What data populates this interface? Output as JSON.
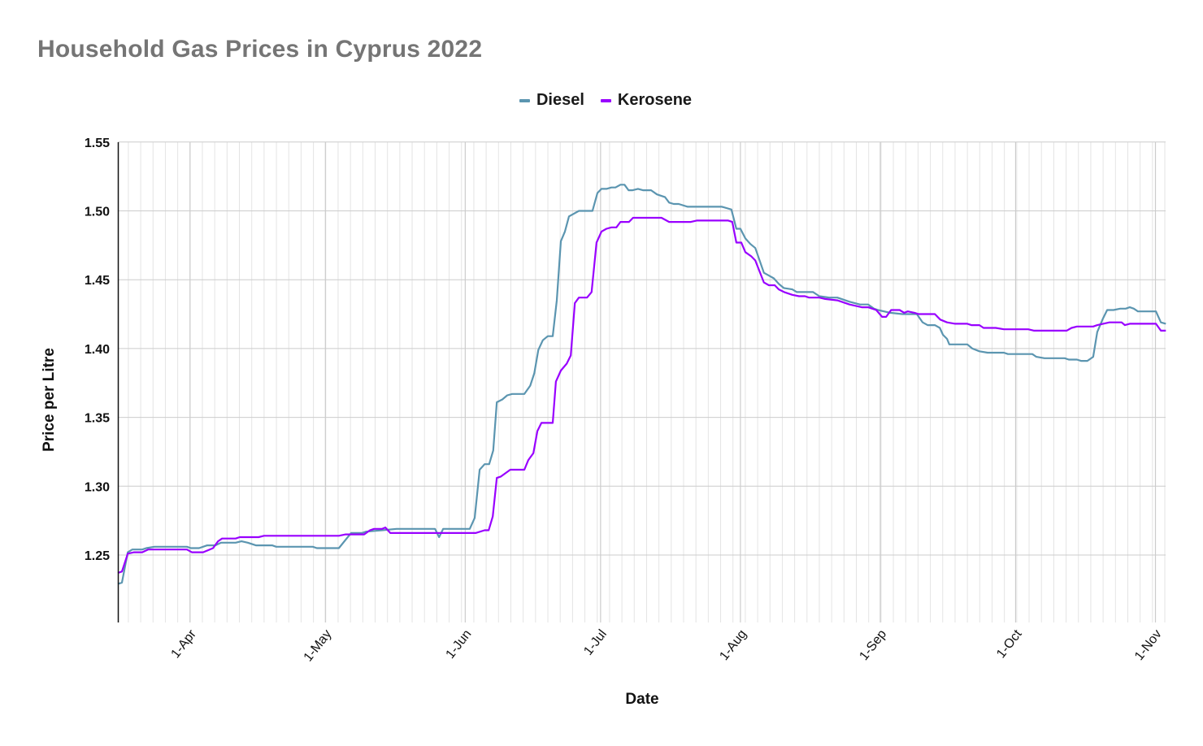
{
  "header": {
    "title": "Household Gas Prices in Cyprus 2022"
  },
  "legend": [
    {
      "label": "Diesel",
      "color": "#5b95b0"
    },
    {
      "label": "Kerosene",
      "color": "#9900ff"
    }
  ],
  "axes": {
    "x_title": "Date",
    "y_title": "Price per Litre"
  },
  "chart_data": {
    "type": "line",
    "title": "Household Gas Prices in Cyprus 2022",
    "xlabel": "Date",
    "ylabel": "Price per Litre",
    "ylim": [
      1.2,
      1.55
    ],
    "y_ticks": [
      "1.25",
      "1.30",
      "1.35",
      "1.40",
      "1.45",
      "1.50",
      "1.55"
    ],
    "x_unit": "days since first data point (approx. mid-March 2022)",
    "x_range": [
      0,
      232
    ],
    "x_ticks": [
      {
        "label": "1-Apr",
        "day": 16
      },
      {
        "label": "1-May",
        "day": 46
      },
      {
        "label": "1-Jun",
        "day": 77
      },
      {
        "label": "1-Jul",
        "day": 107
      },
      {
        "label": "1-Aug",
        "day": 138
      },
      {
        "label": "1-Sep",
        "day": 169
      },
      {
        "label": "1-Oct",
        "day": 199
      },
      {
        "label": "1-Nov",
        "day": 230
      }
    ],
    "grid": true,
    "legend_position": "top",
    "series": [
      {
        "name": "Diesel",
        "color": "#5b95b0",
        "points": [
          [
            0,
            1.229
          ],
          [
            0.9,
            1.23
          ],
          [
            2.2,
            1.252
          ],
          [
            3.2,
            1.254
          ],
          [
            5.4,
            1.254
          ],
          [
            6.3,
            1.255
          ],
          [
            8.1,
            1.256
          ],
          [
            15.3,
            1.256
          ],
          [
            16.2,
            1.255
          ],
          [
            18.0,
            1.255
          ],
          [
            19.8,
            1.257
          ],
          [
            21.6,
            1.257
          ],
          [
            22.9,
            1.259
          ],
          [
            26.1,
            1.259
          ],
          [
            27.4,
            1.26
          ],
          [
            28.8,
            1.259
          ],
          [
            30.6,
            1.257
          ],
          [
            34.2,
            1.257
          ],
          [
            35.1,
            1.256
          ],
          [
            43.2,
            1.256
          ],
          [
            44.1,
            1.255
          ],
          [
            49.0,
            1.255
          ],
          [
            51.7,
            1.266
          ],
          [
            54.1,
            1.266
          ],
          [
            55.0,
            1.267
          ],
          [
            58.6,
            1.268
          ],
          [
            61.8,
            1.269
          ],
          [
            70.3,
            1.269
          ],
          [
            71.2,
            1.263
          ],
          [
            72.1,
            1.269
          ],
          [
            78.0,
            1.269
          ],
          [
            79.1,
            1.277
          ],
          [
            80.2,
            1.312
          ],
          [
            81.3,
            1.316
          ],
          [
            82.3,
            1.316
          ],
          [
            83.2,
            1.326
          ],
          [
            84.0,
            1.361
          ],
          [
            85.2,
            1.363
          ],
          [
            86.3,
            1.366
          ],
          [
            87.4,
            1.367
          ],
          [
            90.1,
            1.367
          ],
          [
            91.4,
            1.373
          ],
          [
            92.3,
            1.382
          ],
          [
            93.2,
            1.399
          ],
          [
            94.2,
            1.406
          ],
          [
            95.3,
            1.409
          ],
          [
            96.4,
            1.409
          ],
          [
            97.3,
            1.435
          ],
          [
            98.2,
            1.478
          ],
          [
            99.1,
            1.485
          ],
          [
            100.0,
            1.496
          ],
          [
            102.2,
            1.5
          ],
          [
            105.2,
            1.5
          ],
          [
            106.3,
            1.513
          ],
          [
            107.2,
            1.516
          ],
          [
            108.3,
            1.516
          ],
          [
            109.4,
            1.517
          ],
          [
            110.3,
            1.517
          ],
          [
            111.4,
            1.519
          ],
          [
            112.3,
            1.519
          ],
          [
            113.2,
            1.515
          ],
          [
            114.1,
            1.515
          ],
          [
            115.3,
            1.516
          ],
          [
            116.4,
            1.515
          ],
          [
            118.2,
            1.515
          ],
          [
            119.5,
            1.512
          ],
          [
            121.3,
            1.51
          ],
          [
            122.2,
            1.506
          ],
          [
            123.2,
            1.505
          ],
          [
            124.3,
            1.505
          ],
          [
            126.3,
            1.503
          ],
          [
            133.9,
            1.503
          ],
          [
            136.0,
            1.501
          ],
          [
            137.1,
            1.487
          ],
          [
            138.0,
            1.487
          ],
          [
            139.1,
            1.48
          ],
          [
            140.2,
            1.476
          ],
          [
            141.3,
            1.473
          ],
          [
            143.2,
            1.455
          ],
          [
            144.3,
            1.453
          ],
          [
            145.4,
            1.451
          ],
          [
            146.5,
            1.447
          ],
          [
            147.6,
            1.444
          ],
          [
            149.5,
            1.443
          ],
          [
            150.5,
            1.441
          ],
          [
            154.1,
            1.441
          ],
          [
            155.5,
            1.438
          ],
          [
            157.7,
            1.437
          ],
          [
            159.5,
            1.437
          ],
          [
            162.2,
            1.434
          ],
          [
            164.5,
            1.432
          ],
          [
            166.3,
            1.432
          ],
          [
            167.6,
            1.429
          ],
          [
            168.5,
            1.428
          ],
          [
            171.2,
            1.426
          ],
          [
            173.9,
            1.425
          ],
          [
            177.1,
            1.425
          ],
          [
            178.4,
            1.419
          ],
          [
            179.5,
            1.417
          ],
          [
            181.1,
            1.417
          ],
          [
            182.2,
            1.415
          ],
          [
            182.9,
            1.41
          ],
          [
            183.8,
            1.407
          ],
          [
            184.3,
            1.403
          ],
          [
            188.3,
            1.403
          ],
          [
            189.4,
            1.4
          ],
          [
            191.0,
            1.398
          ],
          [
            192.8,
            1.397
          ],
          [
            196.4,
            1.397
          ],
          [
            197.3,
            1.396
          ],
          [
            199.1,
            1.396
          ],
          [
            202.7,
            1.396
          ],
          [
            203.6,
            1.394
          ],
          [
            205.4,
            1.393
          ],
          [
            209.9,
            1.393
          ],
          [
            210.8,
            1.392
          ],
          [
            212.6,
            1.392
          ],
          [
            213.5,
            1.391
          ],
          [
            214.9,
            1.391
          ],
          [
            216.2,
            1.394
          ],
          [
            217.1,
            1.412
          ],
          [
            218.4,
            1.422
          ],
          [
            219.3,
            1.428
          ],
          [
            220.7,
            1.428
          ],
          [
            222.2,
            1.429
          ],
          [
            223.4,
            1.429
          ],
          [
            224.3,
            1.43
          ],
          [
            225.2,
            1.429
          ],
          [
            226.1,
            1.427
          ],
          [
            230.1,
            1.427
          ],
          [
            231.2,
            1.419
          ],
          [
            232.3,
            1.418
          ]
        ]
      },
      {
        "name": "Kerosene",
        "color": "#9900ff",
        "points": [
          [
            0,
            1.237
          ],
          [
            0.9,
            1.238
          ],
          [
            2.2,
            1.251
          ],
          [
            3.6,
            1.252
          ],
          [
            5.4,
            1.252
          ],
          [
            6.7,
            1.254
          ],
          [
            15.3,
            1.254
          ],
          [
            16.4,
            1.252
          ],
          [
            18.9,
            1.252
          ],
          [
            21.1,
            1.255
          ],
          [
            22.2,
            1.26
          ],
          [
            23.1,
            1.262
          ],
          [
            26.1,
            1.262
          ],
          [
            27.0,
            1.263
          ],
          [
            31.2,
            1.263
          ],
          [
            32.4,
            1.264
          ],
          [
            49.0,
            1.264
          ],
          [
            50.5,
            1.265
          ],
          [
            54.6,
            1.265
          ],
          [
            55.9,
            1.268
          ],
          [
            56.8,
            1.269
          ],
          [
            58.6,
            1.269
          ],
          [
            59.3,
            1.27
          ],
          [
            60.4,
            1.266
          ],
          [
            79.3,
            1.266
          ],
          [
            81.3,
            1.268
          ],
          [
            82.2,
            1.268
          ],
          [
            83.1,
            1.278
          ],
          [
            84.0,
            1.306
          ],
          [
            84.9,
            1.307
          ],
          [
            87.0,
            1.312
          ],
          [
            90.1,
            1.312
          ],
          [
            91.0,
            1.319
          ],
          [
            92.1,
            1.324
          ],
          [
            93.0,
            1.34
          ],
          [
            93.9,
            1.346
          ],
          [
            96.4,
            1.346
          ],
          [
            97.1,
            1.376
          ],
          [
            98.2,
            1.384
          ],
          [
            99.5,
            1.389
          ],
          [
            100.4,
            1.395
          ],
          [
            101.3,
            1.433
          ],
          [
            102.2,
            1.437
          ],
          [
            104.0,
            1.437
          ],
          [
            105.0,
            1.441
          ],
          [
            106.1,
            1.477
          ],
          [
            107.2,
            1.485
          ],
          [
            108.3,
            1.487
          ],
          [
            109.4,
            1.488
          ],
          [
            110.5,
            1.488
          ],
          [
            111.4,
            1.492
          ],
          [
            112.3,
            1.492
          ],
          [
            113.3,
            1.492
          ],
          [
            114.2,
            1.495
          ],
          [
            117.3,
            1.495
          ],
          [
            118.2,
            1.495
          ],
          [
            120.5,
            1.495
          ],
          [
            122.2,
            1.492
          ],
          [
            127.0,
            1.492
          ],
          [
            128.3,
            1.493
          ],
          [
            135.3,
            1.493
          ],
          [
            136.2,
            1.492
          ],
          [
            137.1,
            1.477
          ],
          [
            138.2,
            1.477
          ],
          [
            139.1,
            1.47
          ],
          [
            140.4,
            1.467
          ],
          [
            141.3,
            1.464
          ],
          [
            143.2,
            1.448
          ],
          [
            144.3,
            1.446
          ],
          [
            145.6,
            1.446
          ],
          [
            146.5,
            1.443
          ],
          [
            147.7,
            1.441
          ],
          [
            149.5,
            1.439
          ],
          [
            151.0,
            1.438
          ],
          [
            152.3,
            1.438
          ],
          [
            153.2,
            1.437
          ],
          [
            155.5,
            1.437
          ],
          [
            156.8,
            1.436
          ],
          [
            159.5,
            1.435
          ],
          [
            162.2,
            1.432
          ],
          [
            164.9,
            1.43
          ],
          [
            166.3,
            1.43
          ],
          [
            168.1,
            1.428
          ],
          [
            169.4,
            1.423
          ],
          [
            170.3,
            1.423
          ],
          [
            171.4,
            1.428
          ],
          [
            173.3,
            1.428
          ],
          [
            174.3,
            1.426
          ],
          [
            175.1,
            1.427
          ],
          [
            176.6,
            1.426
          ],
          [
            177.5,
            1.425
          ],
          [
            181.1,
            1.425
          ],
          [
            182.3,
            1.421
          ],
          [
            183.8,
            1.419
          ],
          [
            185.6,
            1.418
          ],
          [
            188.3,
            1.418
          ],
          [
            189.2,
            1.417
          ],
          [
            191.0,
            1.417
          ],
          [
            191.9,
            1.415
          ],
          [
            194.6,
            1.415
          ],
          [
            196.4,
            1.414
          ],
          [
            201.8,
            1.414
          ],
          [
            203.1,
            1.413
          ],
          [
            210.3,
            1.413
          ],
          [
            211.4,
            1.415
          ],
          [
            212.6,
            1.416
          ],
          [
            216.2,
            1.416
          ],
          [
            217.1,
            1.417
          ],
          [
            219.8,
            1.419
          ],
          [
            222.5,
            1.419
          ],
          [
            223.2,
            1.417
          ],
          [
            224.3,
            1.418
          ],
          [
            230.1,
            1.418
          ],
          [
            231.2,
            1.413
          ],
          [
            232.3,
            1.413
          ]
        ]
      }
    ]
  }
}
